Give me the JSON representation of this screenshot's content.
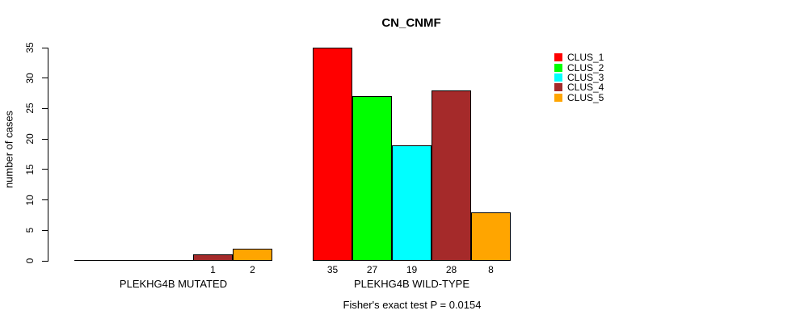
{
  "chart_data": {
    "type": "bar",
    "title": "CN_CNMF",
    "ylabel": "number of cases",
    "xlabel": "",
    "ylim": [
      0,
      35
    ],
    "yticks": [
      0,
      5,
      10,
      15,
      20,
      25,
      30,
      35
    ],
    "grid": false,
    "legend_position": "right",
    "annotation": "Fisher's exact test P = 0.0154",
    "clusters": [
      {
        "name": "CLUS_1",
        "color": "#FF0000"
      },
      {
        "name": "CLUS_2",
        "color": "#00FF00"
      },
      {
        "name": "CLUS_3",
        "color": "#00FFFF"
      },
      {
        "name": "CLUS_4",
        "color": "#A52A2A"
      },
      {
        "name": "CLUS_5",
        "color": "#FFA500"
      }
    ],
    "groups": [
      {
        "label": "PLEKHG4B MUTATED",
        "values": [
          0,
          0,
          0,
          1,
          2
        ],
        "bar_labels": [
          "",
          "",
          "",
          "1",
          "2"
        ]
      },
      {
        "label": "PLEKHG4B WILD-TYPE",
        "values": [
          35,
          27,
          19,
          28,
          8
        ],
        "bar_labels": [
          "35",
          "27",
          "19",
          "28",
          "8"
        ]
      }
    ]
  }
}
